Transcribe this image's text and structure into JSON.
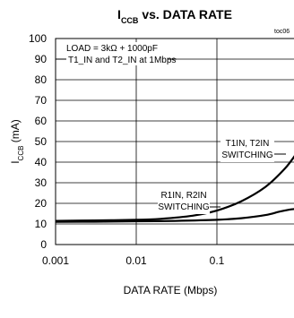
{
  "chart_data": {
    "type": "line",
    "title_main": "I",
    "title_sub": "CCB",
    "title_rest": " vs. DATA RATE",
    "xlabel": "DATA RATE (Mbps)",
    "ylabel_main": "I",
    "ylabel_sub": "CCB",
    "ylabel_rest": " (mA)",
    "figure_ref": "toc06",
    "x_scale": "log",
    "xlim": [
      0.001,
      1.2
    ],
    "ylim": [
      0,
      100
    ],
    "x_ticks": [
      {
        "value": 0.001,
        "label": "0.001"
      },
      {
        "value": 0.01,
        "label": "0.01"
      },
      {
        "value": 0.1,
        "label": "0.1"
      }
    ],
    "y_ticks": [
      {
        "value": 0,
        "label": "0"
      },
      {
        "value": 10,
        "label": "10"
      },
      {
        "value": 20,
        "label": "20"
      },
      {
        "value": 30,
        "label": "30"
      },
      {
        "value": 40,
        "label": "40"
      },
      {
        "value": 50,
        "label": "50"
      },
      {
        "value": 60,
        "label": "60"
      },
      {
        "value": 70,
        "label": "70"
      },
      {
        "value": 80,
        "label": "80"
      },
      {
        "value": 90,
        "label": "90"
      },
      {
        "value": 100,
        "label": "100"
      }
    ],
    "grid": true,
    "legend_lines": [
      "LOAD = 3kΩ + 1000pF",
      "T1_IN and T2_IN at 1Mbps"
    ],
    "series": [
      {
        "name": "T1IN, T2IN SWITCHING",
        "annotation_lines": [
          "T1IN, T2IN",
          "SWITCHING"
        ],
        "x": [
          0.001,
          0.003,
          0.01,
          0.02,
          0.05,
          0.1,
          0.2,
          0.4,
          0.7,
          1.0,
          1.2
        ],
        "y": [
          11.5,
          11.7,
          12.0,
          12.5,
          14.0,
          16.5,
          21.0,
          28.0,
          37.0,
          45.0,
          49.5
        ]
      },
      {
        "name": "R1IN, R2IN SWITCHING",
        "annotation_lines": [
          "R1IN, R2IN",
          "SWITCHING"
        ],
        "x": [
          0.001,
          0.003,
          0.01,
          0.03,
          0.1,
          0.2,
          0.4,
          0.6,
          0.8,
          1.0,
          1.1,
          1.2
        ],
        "y": [
          11.0,
          11.1,
          11.3,
          11.5,
          12.0,
          12.8,
          14.3,
          16.0,
          17.0,
          17.5,
          19.0,
          21.0
        ]
      }
    ]
  }
}
